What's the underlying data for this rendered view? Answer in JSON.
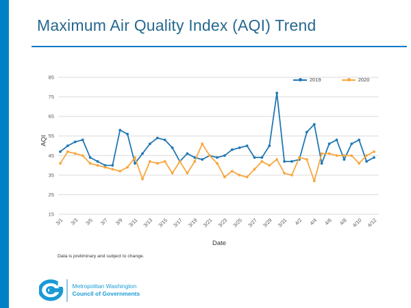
{
  "page": {
    "title": "Maximum Air Quality Index (AQI) Trend"
  },
  "chart_data": {
    "type": "line",
    "title": "Maximum Air Quality Index (AQI) Trend",
    "xlabel": "Date",
    "ylabel": "AQI",
    "ylim": [
      15,
      85
    ],
    "yticks": [
      15,
      25,
      35,
      45,
      55,
      65,
      75,
      85
    ],
    "grid": true,
    "legend_position": "top-right",
    "x_label_every": 2,
    "categories": [
      "3/1",
      "3/2",
      "3/3",
      "3/4",
      "3/5",
      "3/6",
      "3/7",
      "3/8",
      "3/9",
      "3/10",
      "3/11",
      "3/12",
      "3/13",
      "3/14",
      "3/15",
      "3/16",
      "3/17",
      "3/18",
      "3/19",
      "3/20",
      "3/21",
      "3/22",
      "3/23",
      "3/24",
      "3/25",
      "3/26",
      "3/27",
      "3/28",
      "3/29",
      "3/30",
      "3/31",
      "4/1",
      "4/2",
      "4/3",
      "4/4",
      "4/5",
      "4/6",
      "4/7",
      "4/8",
      "4/9",
      "4/10",
      "4/11",
      "4/12"
    ],
    "series": [
      {
        "name": "2019",
        "color": "#1F77B4",
        "values": [
          47,
          50,
          52,
          53,
          44,
          42,
          40,
          40,
          58,
          56,
          41,
          46,
          51,
          54,
          53,
          49,
          42,
          46,
          44,
          43,
          45,
          44,
          45,
          48,
          49,
          50,
          44,
          44,
          50,
          77,
          42,
          42,
          43,
          57,
          61,
          41,
          51,
          53,
          43,
          51,
          53,
          42,
          44
        ]
      },
      {
        "name": "2020",
        "color": "#F9A63C",
        "values": [
          41,
          47,
          46,
          45,
          41,
          40,
          39,
          38,
          37,
          39,
          44,
          33,
          42,
          41,
          42,
          36,
          42,
          36,
          42,
          51,
          45,
          41,
          34,
          37,
          35,
          34,
          38,
          42,
          40,
          43,
          36,
          35,
          44,
          43,
          32,
          46,
          46,
          45,
          45,
          45,
          41,
          45,
          47
        ]
      }
    ]
  },
  "axes": {
    "y_title": "AQI",
    "x_title": "Date"
  },
  "footer": {
    "note": "Data is preliminary and subject to change."
  },
  "logo": {
    "line1": "Metropolitan Washington",
    "line2": "Council of Governments"
  },
  "colors": {
    "accent_bar": "#0081C6",
    "title_text": "#26688E",
    "title_underline": "#0077C6",
    "series_2019": "#1F77B4",
    "series_2020": "#F9A63C",
    "gridline": "#D9D9D9",
    "axis_text": "#595959",
    "logo_blue": "#1A9AD5"
  }
}
